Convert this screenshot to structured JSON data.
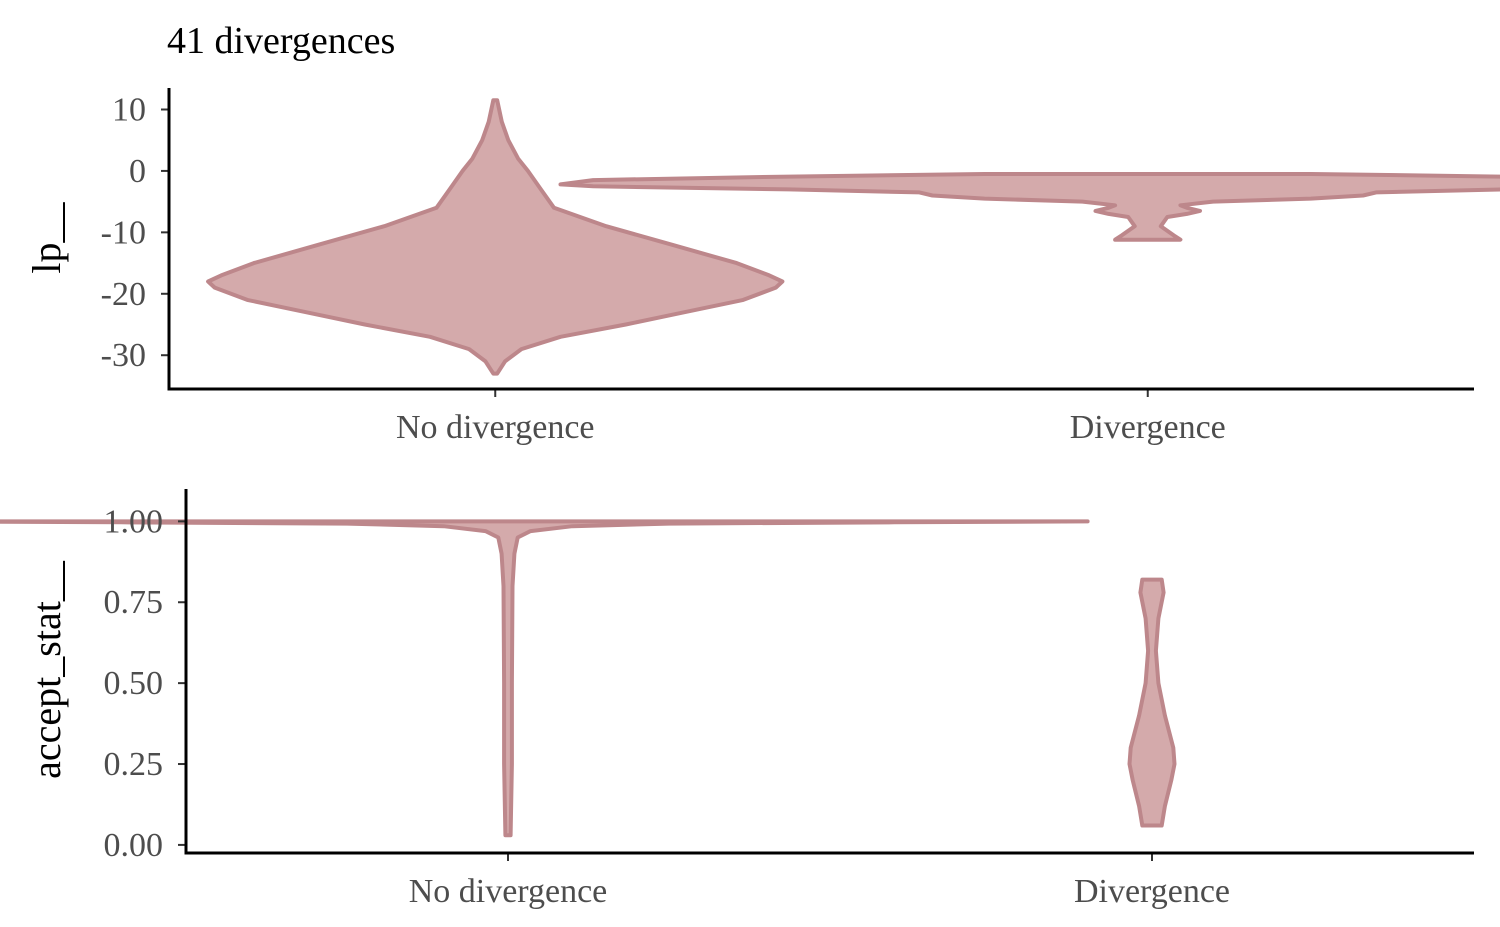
{
  "title": "41 divergences",
  "colors": {
    "violin_fill": "#d4aaab",
    "violin_stroke": "#bd878b",
    "axis": "#000000",
    "tick_text": "#4d4d4d"
  },
  "chart_data": [
    {
      "type": "violin",
      "ylabel": "lp__",
      "categories": [
        "No divergence",
        "Divergence"
      ],
      "ylim": [
        -35.5,
        13.5
      ],
      "yticks": [
        10,
        0,
        -10,
        -20,
        -30
      ],
      "ytick_labels": [
        "10",
        "0",
        "-10",
        "-20",
        "-30"
      ],
      "violins": [
        {
          "category": "No divergence",
          "profile": [
            [
              11.5,
              0.003
            ],
            [
              8,
              0.01
            ],
            [
              5,
              0.02
            ],
            [
              2,
              0.035
            ],
            [
              0,
              0.05
            ],
            [
              -3,
              0.07
            ],
            [
              -6,
              0.09
            ],
            [
              -9,
              0.17
            ],
            [
              -12,
              0.27
            ],
            [
              -15,
              0.37
            ],
            [
              -17,
              0.42
            ],
            [
              -18,
              0.44
            ],
            [
              -19,
              0.43
            ],
            [
              -21,
              0.38
            ],
            [
              -23,
              0.29
            ],
            [
              -25,
              0.2
            ],
            [
              -27,
              0.1
            ],
            [
              -29,
              0.04
            ],
            [
              -31,
              0.015
            ],
            [
              -33,
              0.003
            ]
          ]
        },
        {
          "category": "Divergence",
          "profile": [
            [
              -0.5,
              0.25
            ],
            [
              -1,
              0.6
            ],
            [
              -1.5,
              0.85
            ],
            [
              -2.2,
              0.9
            ],
            [
              -2.5,
              0.85
            ],
            [
              -3,
              0.55
            ],
            [
              -3.5,
              0.35
            ],
            [
              -4,
              0.33
            ],
            [
              -4.5,
              0.25
            ],
            [
              -5,
              0.1
            ],
            [
              -5.6,
              0.05
            ],
            [
              -6,
              0.06
            ],
            [
              -6.5,
              0.08
            ],
            [
              -7,
              0.06
            ],
            [
              -7.5,
              0.03
            ],
            [
              -9,
              0.02
            ],
            [
              -10.5,
              0.04
            ],
            [
              -11.2,
              0.05
            ]
          ]
        }
      ]
    },
    {
      "type": "violin",
      "ylabel": "accept_stat__",
      "categories": [
        "No divergence",
        "Divergence"
      ],
      "ylim": [
        -0.025,
        1.1
      ],
      "yticks": [
        1.0,
        0.75,
        0.5,
        0.25,
        0.0
      ],
      "ytick_labels": [
        "1.00",
        "0.75",
        "0.50",
        "0.25",
        "0.00"
      ],
      "violins": [
        {
          "category": "No divergence",
          "profile": [
            [
              1.0,
              0.9
            ],
            [
              0.997,
              0.6
            ],
            [
              0.993,
              0.25
            ],
            [
              0.985,
              0.1
            ],
            [
              0.97,
              0.035
            ],
            [
              0.95,
              0.015
            ],
            [
              0.9,
              0.01
            ],
            [
              0.8,
              0.007
            ],
            [
              0.5,
              0.006
            ],
            [
              0.25,
              0.006
            ],
            [
              0.03,
              0.004
            ]
          ]
        },
        {
          "category": "Divergence",
          "profile": [
            [
              0.82,
              0.015
            ],
            [
              0.78,
              0.018
            ],
            [
              0.7,
              0.01
            ],
            [
              0.6,
              0.006
            ],
            [
              0.5,
              0.01
            ],
            [
              0.4,
              0.02
            ],
            [
              0.3,
              0.033
            ],
            [
              0.25,
              0.035
            ],
            [
              0.2,
              0.03
            ],
            [
              0.12,
              0.02
            ],
            [
              0.06,
              0.015
            ]
          ]
        }
      ]
    }
  ]
}
